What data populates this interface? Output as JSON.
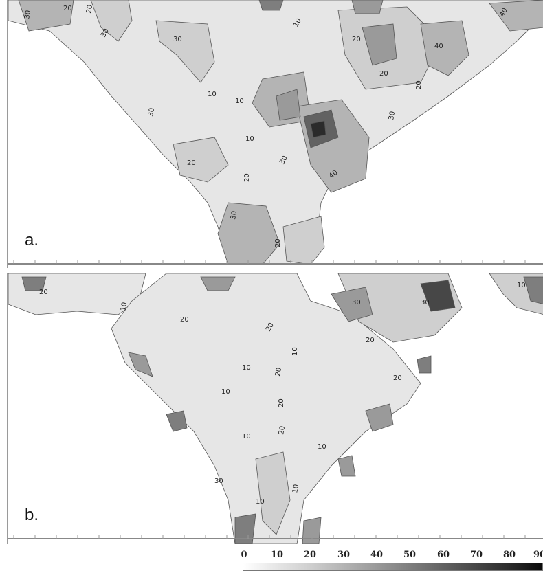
{
  "panels": [
    {
      "label": "a."
    },
    {
      "label": "b."
    }
  ],
  "colorbar": {
    "ticks": [
      "0",
      "10",
      "20",
      "30",
      "40",
      "50",
      "60",
      "70",
      "80",
      "90"
    ],
    "colors": [
      "#ffffff",
      "#e6e6e6",
      "#cfcfcf",
      "#b4b4b4",
      "#9a9a9a",
      "#7e7e7e",
      "#626262",
      "#474747",
      "#2b2b2b",
      "#0a0a0a"
    ]
  },
  "chart_data": {
    "type": "heatmap",
    "title": "",
    "colorbar_range": [
      0,
      90
    ],
    "colorbar_ticks": [
      0,
      10,
      20,
      30,
      40,
      50,
      60,
      70,
      80,
      90
    ],
    "contour_levels": [
      10,
      20,
      30,
      40,
      50,
      60,
      70,
      80,
      90
    ],
    "panels": [
      "a.",
      "b."
    ]
  }
}
